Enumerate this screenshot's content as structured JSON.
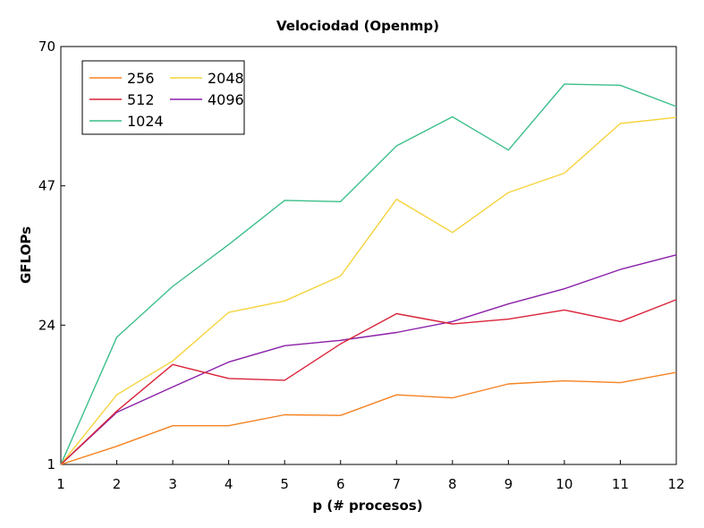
{
  "chart_data": {
    "type": "line",
    "title": "Velociodad (Openmp)",
    "xlabel": "p (# procesos)",
    "ylabel": "GFLOPs",
    "x": [
      1,
      2,
      3,
      4,
      5,
      6,
      7,
      8,
      9,
      10,
      11,
      12
    ],
    "xlim": [
      1,
      12
    ],
    "ylim": [
      1,
      70
    ],
    "yticks": [
      1,
      24,
      47,
      70
    ],
    "grid": false,
    "legend_position": "top-left",
    "series": [
      {
        "name": "256",
        "color": "#f58220",
        "values": [
          1,
          4,
          7.4,
          7.4,
          9.2,
          9.1,
          12.5,
          12,
          14.3,
          14.8,
          14.5,
          16.2
        ]
      },
      {
        "name": "512",
        "color": "#d9243a",
        "values": [
          1,
          9.8,
          17.5,
          15.2,
          14.9,
          20.9,
          25.9,
          24.2,
          25,
          26.5,
          24.6,
          28.2
        ]
      },
      {
        "name": "1024",
        "color": "#3cbf8a",
        "values": [
          1,
          22,
          30.4,
          37.3,
          44.6,
          44.4,
          53.6,
          58.4,
          52.9,
          63.8,
          63.6,
          60.1
        ]
      },
      {
        "name": "2048",
        "color": "#f5d33c",
        "values": [
          1,
          12.5,
          18.1,
          26.1,
          28,
          32.1,
          44.8,
          39.3,
          45.9,
          49.1,
          57.3,
          58.3
        ]
      },
      {
        "name": "4096",
        "color": "#8a1fa8",
        "values": [
          1,
          9.6,
          13.8,
          17.9,
          20.6,
          21.5,
          22.8,
          24.6,
          27.5,
          30,
          33.2,
          35.6
        ]
      }
    ],
    "legend_order": [
      "256",
      "2048",
      "512",
      "4096",
      "1024"
    ]
  }
}
